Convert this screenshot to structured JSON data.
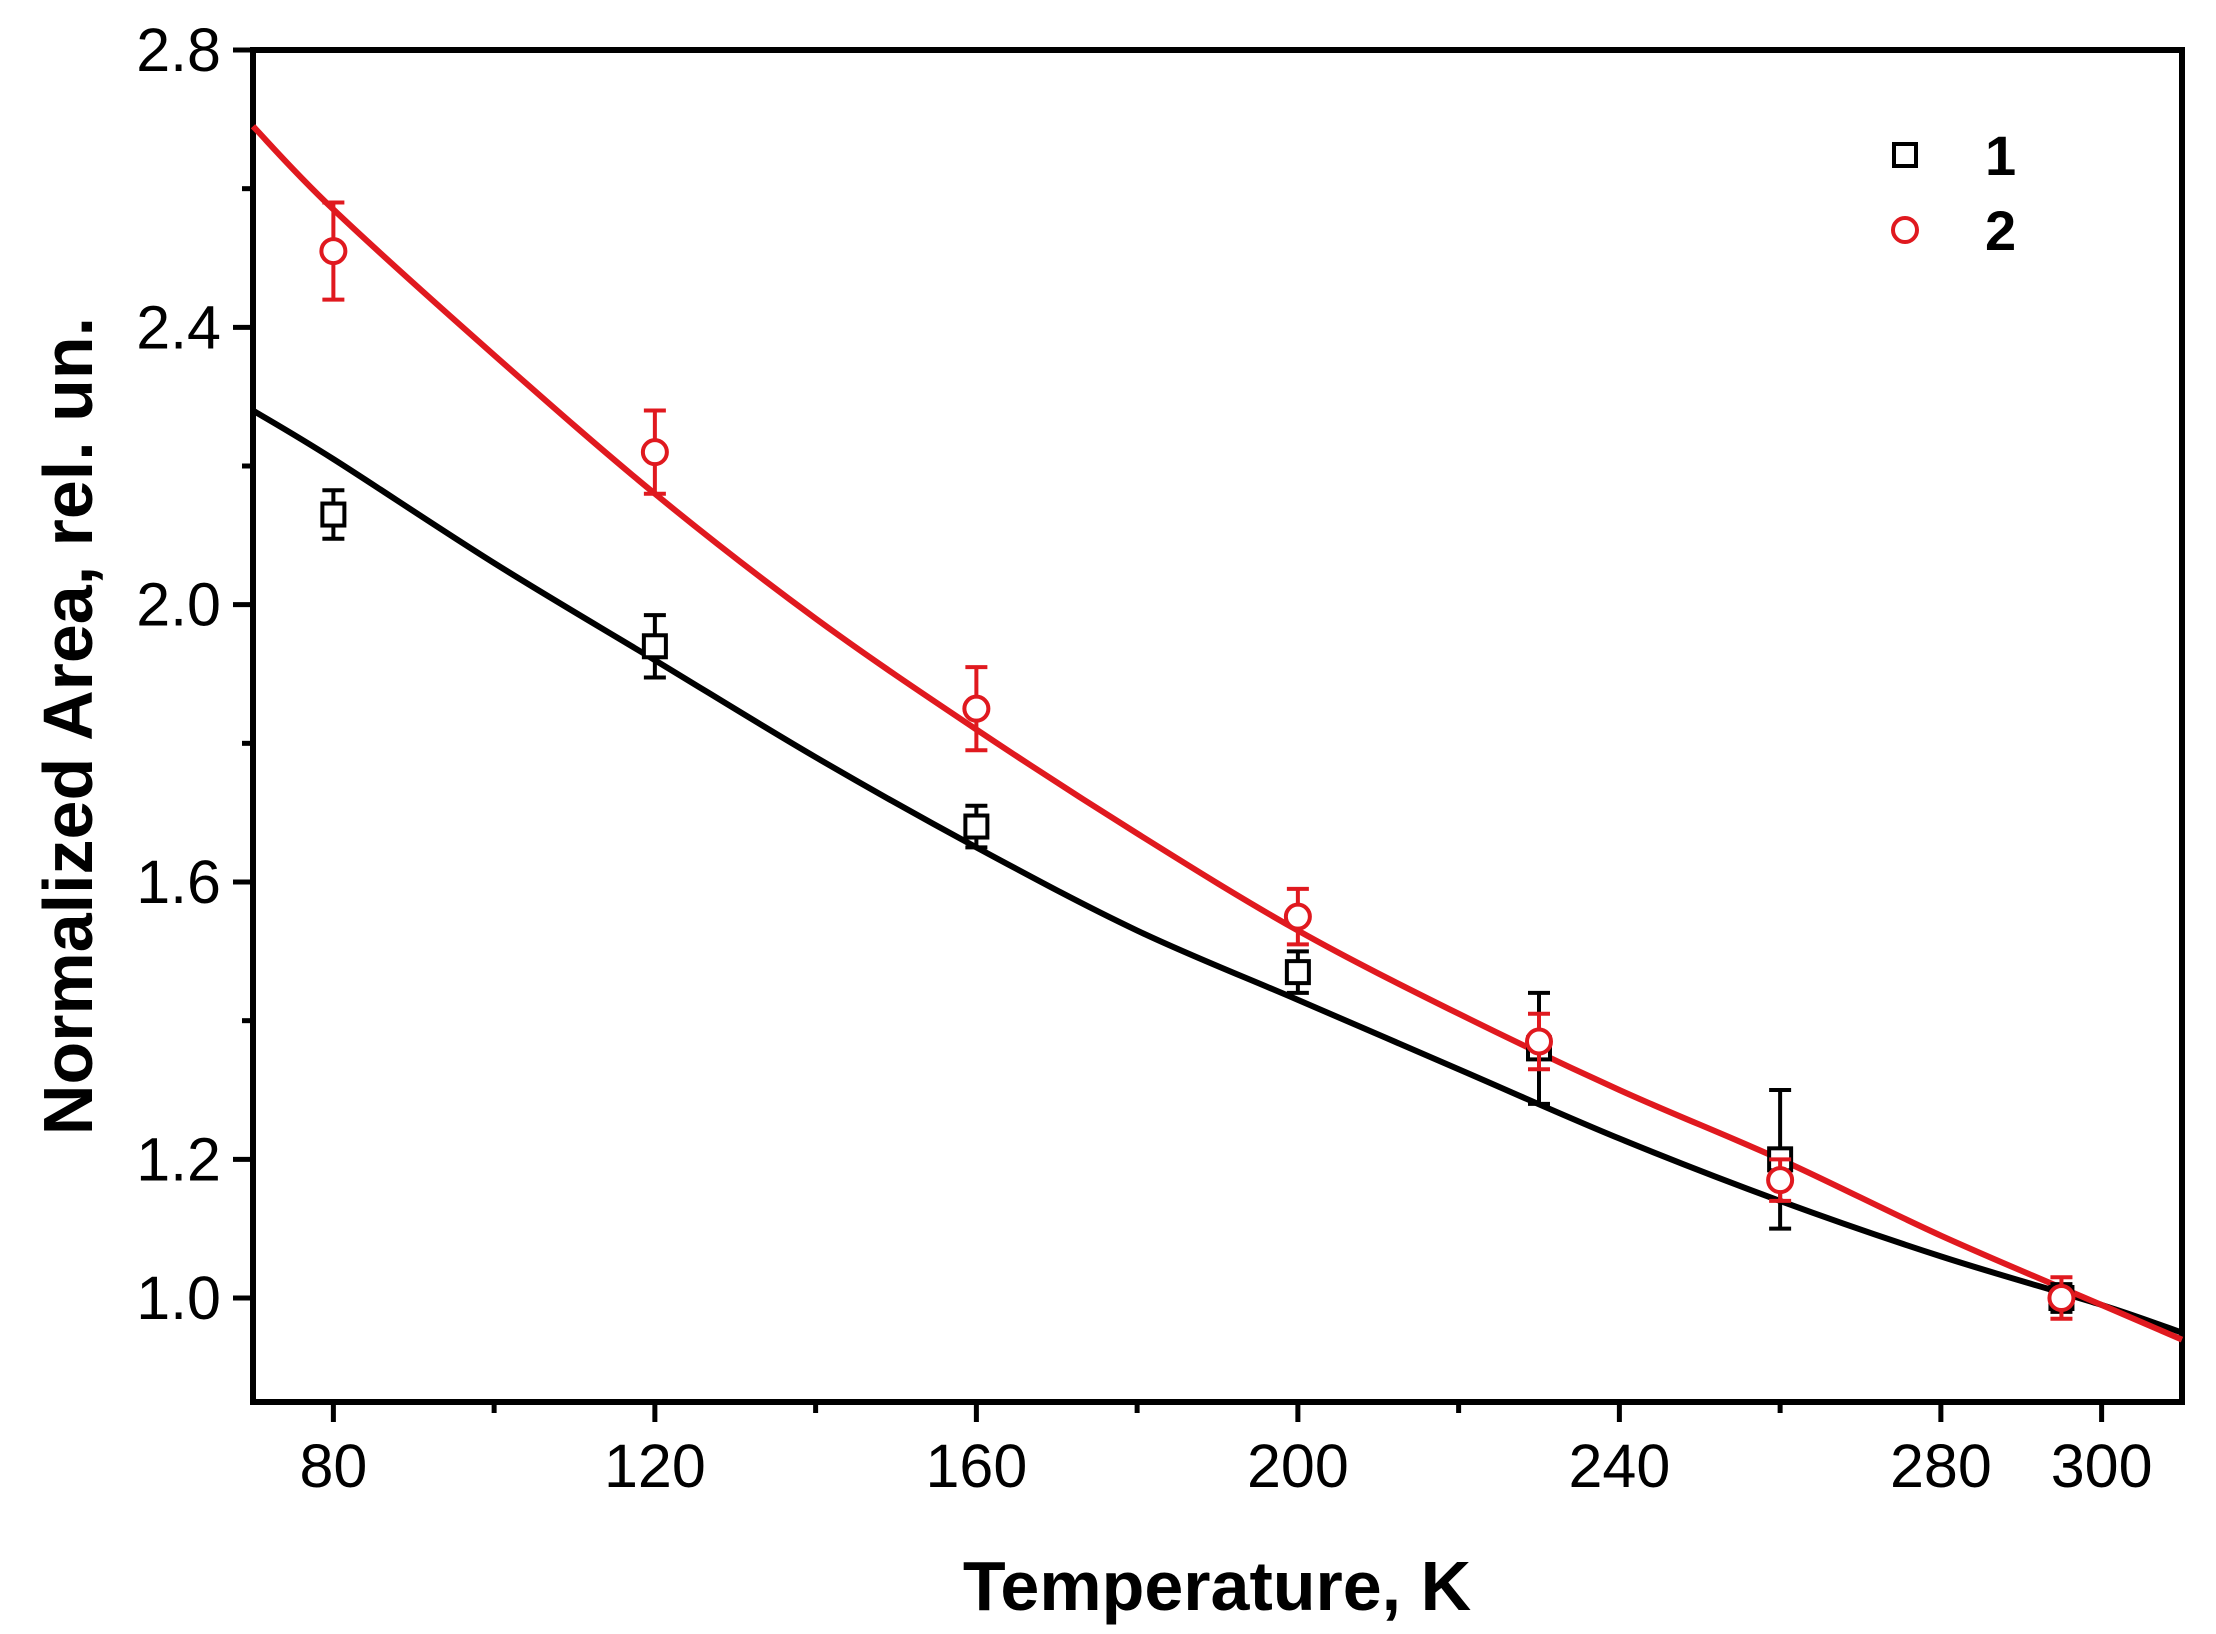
{
  "chart_data": {
    "type": "scatter",
    "title": "",
    "xlabel": "Temperature, K",
    "ylabel": "Normalized Area, rel. un.",
    "xlim": [
      70,
      310
    ],
    "ylim": [
      0.85,
      2.8
    ],
    "x_ticks": [
      80,
      120,
      160,
      200,
      240,
      280,
      300
    ],
    "x_tick_labels": [
      "80",
      "120",
      "160",
      "200",
      "240",
      "280",
      "300"
    ],
    "x_minor_ticks": [
      100,
      140,
      180,
      220,
      260
    ],
    "y_ticks": [
      1.0,
      1.2,
      1.6,
      2.0,
      2.4,
      2.8
    ],
    "y_tick_labels": [
      "1.0",
      "1.2",
      "1.6",
      "2.0",
      "2.4",
      "2.8"
    ],
    "y_minor_ticks": [
      1.4,
      1.8,
      2.2,
      2.6
    ],
    "grid": false,
    "legend_position": "top-right",
    "series": [
      {
        "name": "1",
        "color": "#000000",
        "marker": "square",
        "x": [
          80,
          120,
          160,
          200,
          230,
          260,
          295
        ],
        "y": [
          2.13,
          1.94,
          1.68,
          1.47,
          1.36,
          1.2,
          1.0
        ],
        "err": [
          0.035,
          0.045,
          0.03,
          0.03,
          0.08,
          0.1,
          0.02
        ],
        "fit": {
          "x": [
            70,
            80,
            100,
            120,
            140,
            160,
            180,
            200,
            220,
            240,
            260,
            280,
            300,
            310
          ],
          "y": [
            2.28,
            2.21,
            2.06,
            1.92,
            1.78,
            1.65,
            1.53,
            1.43,
            1.33,
            1.23,
            1.14,
            1.06,
            0.99,
            0.95
          ]
        }
      },
      {
        "name": "2",
        "color": "#e0191f",
        "marker": "circle",
        "x": [
          80,
          120,
          160,
          200,
          230,
          260,
          295
        ],
        "y": [
          2.51,
          2.22,
          1.85,
          1.55,
          1.37,
          1.17,
          1.0
        ],
        "err": [
          0.07,
          0.06,
          0.06,
          0.04,
          0.04,
          0.03,
          0.03
        ],
        "fit": {
          "x": [
            70,
            80,
            100,
            120,
            140,
            160,
            180,
            200,
            220,
            240,
            260,
            280,
            300,
            310
          ],
          "y": [
            2.69,
            2.57,
            2.36,
            2.16,
            1.98,
            1.82,
            1.67,
            1.53,
            1.41,
            1.3,
            1.2,
            1.09,
            0.99,
            0.94
          ]
        }
      }
    ]
  }
}
